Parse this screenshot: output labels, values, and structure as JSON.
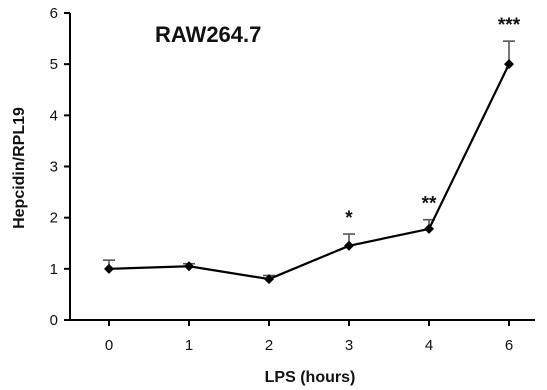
{
  "chart_data": {
    "type": "line",
    "title": "RAW264.7",
    "xlabel": "LPS (hours)",
    "ylabel": "Hepcidin/RPL19",
    "categories": [
      "0",
      "1",
      "2",
      "3",
      "4",
      "6"
    ],
    "series": [
      {
        "values": [
          1.0,
          1.05,
          0.8,
          1.45,
          1.78,
          5.0
        ],
        "errors": [
          0.17,
          0.05,
          0.07,
          0.23,
          0.18,
          0.45
        ]
      }
    ],
    "significance": [
      "",
      "",
      "",
      "*",
      "**",
      "***"
    ],
    "ylim": [
      0,
      6
    ],
    "yticks": [
      "0",
      "1",
      "2",
      "3",
      "4",
      "5",
      "6"
    ],
    "grid": false,
    "legend": "none"
  }
}
